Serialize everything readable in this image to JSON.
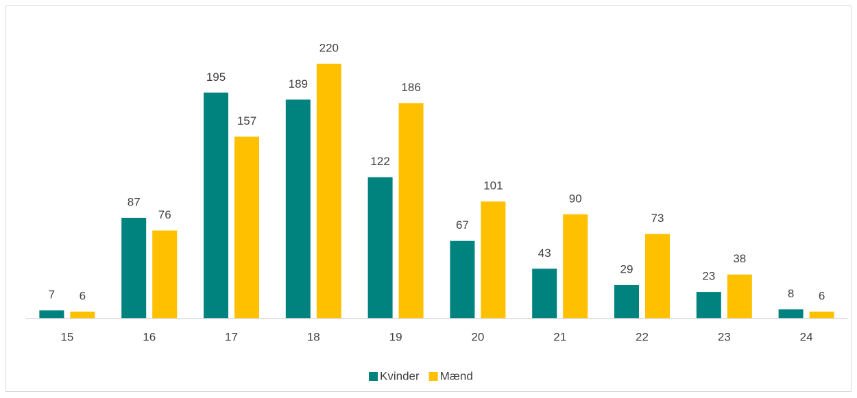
{
  "chart_data": {
    "type": "bar",
    "categories": [
      "15",
      "16",
      "17",
      "18",
      "19",
      "20",
      "21",
      "22",
      "23",
      "24"
    ],
    "series": [
      {
        "name": "Kvinder",
        "color": "#00827f",
        "values": [
          7,
          87,
          195,
          189,
          122,
          67,
          43,
          29,
          23,
          8
        ]
      },
      {
        "name": "Mænd",
        "color": "#ffc000",
        "values": [
          6,
          76,
          157,
          220,
          186,
          101,
          90,
          73,
          38,
          6
        ]
      }
    ],
    "legend": "bottom"
  }
}
